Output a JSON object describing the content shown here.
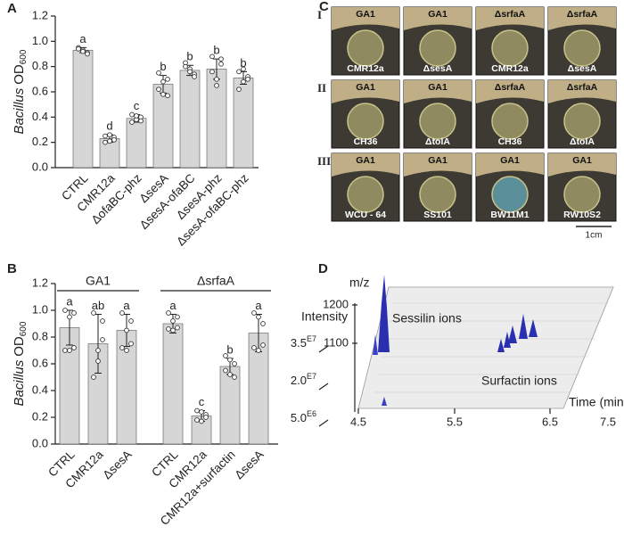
{
  "chart_data": [
    {
      "type": "bar",
      "panel": "A",
      "ylabel": {
        "italic": "Bacillus",
        "text": "OD",
        "sub": "600"
      },
      "categories": [
        "CTRL",
        "CMR12a",
        "ΔofaBC-phz",
        "ΔsesA",
        "ΔsesA-ofaBC",
        "ΔsesA-phz",
        "ΔsesA-ofaBC-phz"
      ],
      "values": [
        0.93,
        0.23,
        0.39,
        0.66,
        0.77,
        0.78,
        0.71
      ],
      "errors": [
        0.02,
        0.03,
        0.03,
        0.07,
        0.04,
        0.08,
        0.05
      ],
      "points": [
        [
          0.95,
          0.93,
          0.91,
          0.94,
          0.92,
          0.9
        ],
        [
          0.25,
          0.21,
          0.24,
          0.2,
          0.26,
          0.22
        ],
        [
          0.42,
          0.38,
          0.4,
          0.36,
          0.41,
          0.37
        ],
        [
          0.75,
          0.58,
          0.7,
          0.62,
          0.68,
          0.57
        ],
        [
          0.83,
          0.78,
          0.74,
          0.8,
          0.76,
          0.72
        ],
        [
          0.88,
          0.7,
          0.82,
          0.76,
          0.65,
          0.86
        ],
        [
          0.76,
          0.68,
          0.72,
          0.62,
          0.78,
          0.7
        ]
      ],
      "letters": [
        "a",
        "d",
        "c",
        "b",
        "b",
        "b",
        "b"
      ],
      "color": "#d6d6d6",
      "ylim": [
        0,
        1.2
      ],
      "yticks": [
        {
          "value": 0,
          "label": "0.0"
        },
        0.2,
        0.4,
        0.6,
        0.8,
        {
          "value": 1,
          "label": "1.0"
        },
        1.2
      ]
    },
    {
      "type": "bar",
      "panel": "B",
      "ylabel": {
        "italic": "Bacillus",
        "text": "OD",
        "sub": "600"
      },
      "groups": [
        {
          "name": "GA1",
          "categories": [
            "CTRL",
            "CMR12a",
            "ΔsesA"
          ],
          "values": [
            0.87,
            0.75,
            0.85
          ],
          "errors": [
            0.13,
            0.22,
            0.12
          ],
          "points": [
            [
              1.0,
              0.7,
              0.98,
              0.7,
              0.95,
              0.72
            ],
            [
              0.98,
              0.62,
              0.92,
              0.5,
              0.7,
              0.78
            ],
            [
              0.98,
              0.7,
              0.92,
              0.72,
              0.85,
              0.75
            ]
          ],
          "letters": [
            "a",
            "ab",
            "a"
          ]
        },
        {
          "name": "ΔsrfaA",
          "categories": [
            "CTRL",
            "CMR12a",
            "CMR12a+surfactin",
            "ΔsesA"
          ],
          "values": [
            0.9,
            0.21,
            0.58,
            0.83
          ],
          "errors": [
            0.07,
            0.04,
            0.06,
            0.14
          ],
          "points": [
            [
              0.98,
              0.85,
              0.95,
              0.86,
              0.92,
              0.87
            ],
            [
              0.25,
              0.17,
              0.22,
              0.18,
              0.24,
              0.2
            ],
            [
              0.66,
              0.52,
              0.6,
              0.55,
              0.63,
              0.5
            ],
            [
              0.98,
              0.7,
              0.9,
              0.72,
              0.95,
              0.74
            ]
          ],
          "letters": [
            "a",
            "c",
            "b",
            "a"
          ]
        }
      ],
      "color": "#d6d6d6",
      "ylim": [
        0,
        1.2
      ],
      "yticks": [
        {
          "value": 0,
          "label": "0.0"
        },
        0.2,
        0.4,
        0.6,
        0.8,
        {
          "value": 1,
          "label": "1.0"
        },
        1.2
      ]
    }
  ],
  "panel_c": {
    "label": "C",
    "scale": "1cm",
    "rows": [
      {
        "label": "I",
        "cells": [
          {
            "top": "GA1",
            "bottom": "CMR12a"
          },
          {
            "top": "GA1",
            "bottom": "ΔsesA"
          },
          {
            "top": "ΔsrfaA",
            "bottom": "CMR12a"
          },
          {
            "top": "ΔsrfaA",
            "bottom": "ΔsesA"
          }
        ]
      },
      {
        "label": "II",
        "cells": [
          {
            "top": "GA1",
            "bottom": "CH36"
          },
          {
            "top": "GA1",
            "bottom": "ΔtolA"
          },
          {
            "top": "ΔsrfaA",
            "bottom": "CH36"
          },
          {
            "top": "ΔsrfaA",
            "bottom": "ΔtolA"
          }
        ]
      },
      {
        "label": "III",
        "cells": [
          {
            "top": "GA1",
            "bottom": "WCU - 64"
          },
          {
            "top": "GA1",
            "bottom": "SS101"
          },
          {
            "top": "GA1",
            "bottom": "BW11M1"
          },
          {
            "top": "GA1",
            "bottom": "RW10S2"
          }
        ]
      }
    ]
  },
  "panel_d": {
    "label": "D",
    "mz_label": "m/z",
    "mz_ticks": [
      "1200",
      "1100"
    ],
    "intensity_label": "Intensity",
    "intensity_ticks": [
      {
        "base": "3.5",
        "exp": "E7"
      },
      {
        "base": "2.0",
        "exp": "E7"
      },
      {
        "base": "5.0",
        "exp": "E6"
      }
    ],
    "time_ticks": [
      "4.5",
      "5.5",
      "6.5",
      "7.5"
    ],
    "time_label": "Time (min)",
    "annotations": [
      "Sessilin ions",
      "Surfactin ions"
    ]
  }
}
